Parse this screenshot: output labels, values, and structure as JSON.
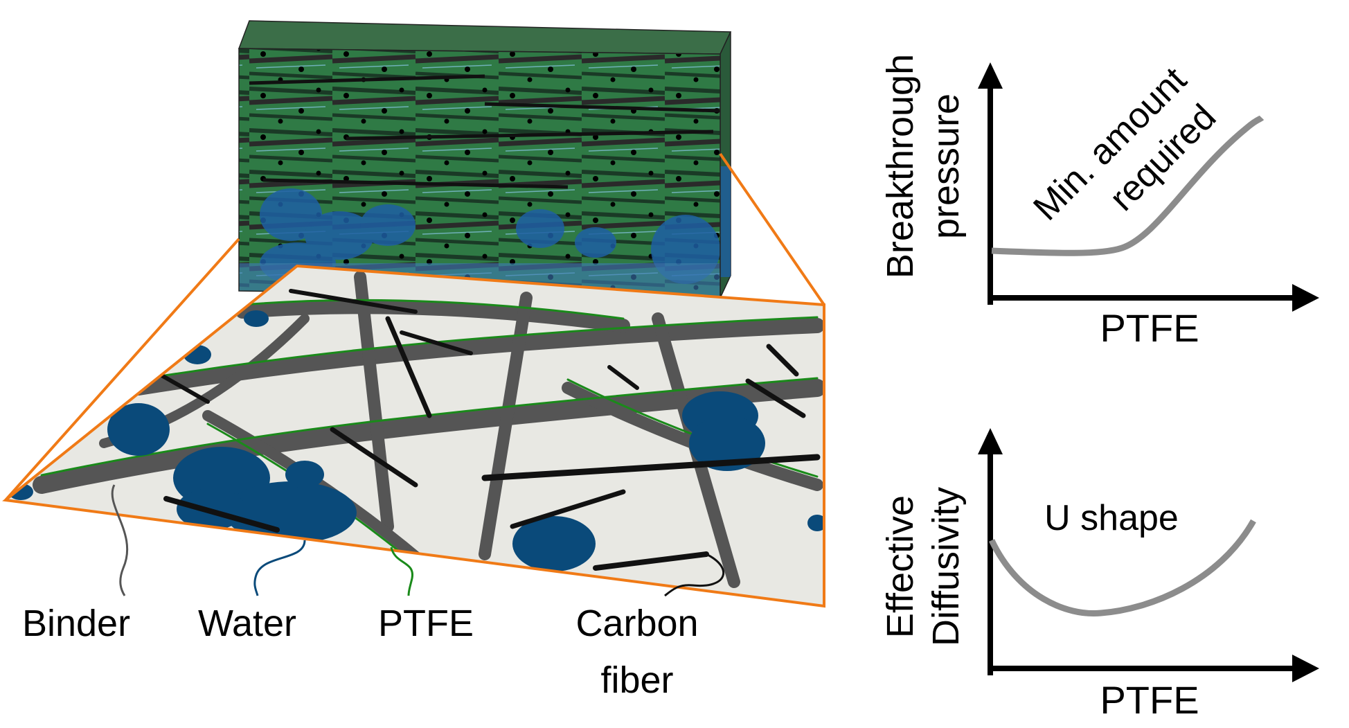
{
  "legend": {
    "binder": "Binder",
    "water": "Water",
    "ptfe": "PTFE",
    "carbon_fiber_line1": "Carbon",
    "carbon_fiber_line2": "fiber"
  },
  "colors": {
    "binder": "#555555",
    "water": "#0a4a7a",
    "ptfe": "#1a8a1a",
    "carbon_fiber": "#111111",
    "pore": "#e8e8e3",
    "zoom_frame": "#f07a16",
    "curve": "#8c8c8c"
  },
  "plot_top": {
    "ylabel_line1": "Breakthrough",
    "ylabel_line2": "pressure",
    "xlabel": "PTFE",
    "annotation_line1": "Min. amount",
    "annotation_line2": "required"
  },
  "plot_bottom": {
    "ylabel_line1": "Effective",
    "ylabel_line2": "Diffusivity",
    "xlabel": "PTFE",
    "annotation": "U shape"
  }
}
